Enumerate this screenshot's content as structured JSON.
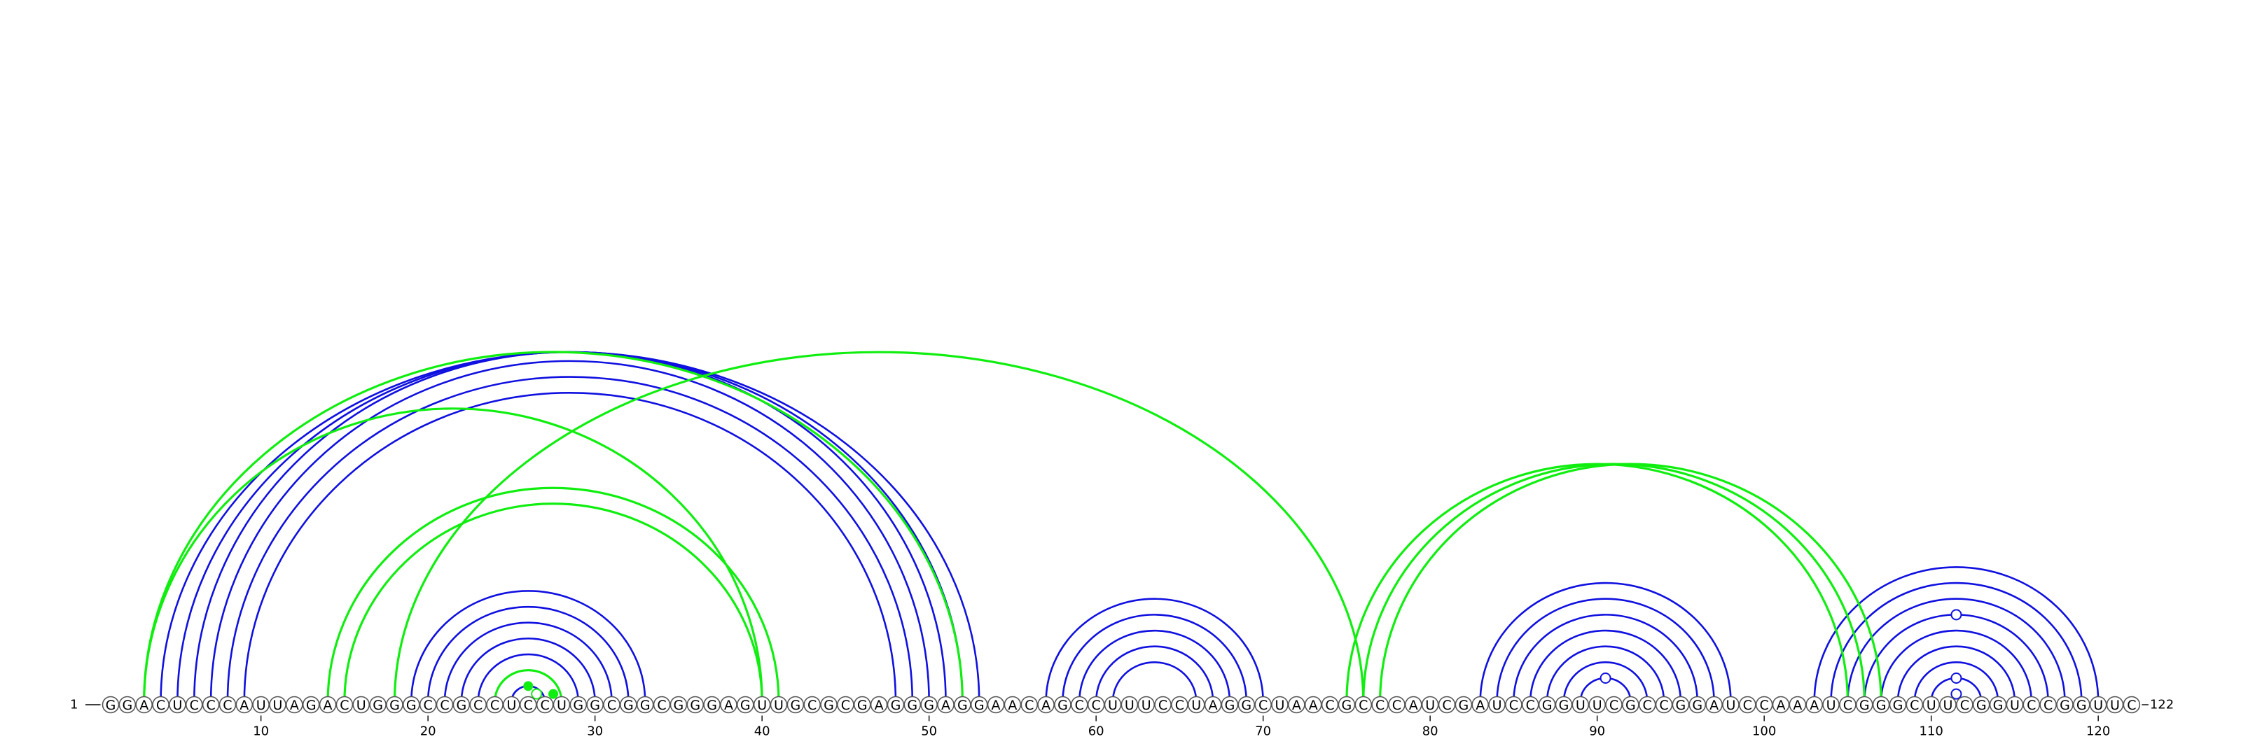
{
  "sequence": "GGACUCCCAUUAGACUGGGCCGCCUCCUGGCGGCGGGAGUUGCGCGAGGGAGGAACAGCCUUUCCUAGGCUAACGCCCAUCGAUCCGGUUCGCCGGAUCCAAAUCGGGCUUCGGUCCGGUUC",
  "start_label": "1",
  "end_label": "122",
  "ticks": [
    10,
    20,
    30,
    40,
    50,
    60,
    70,
    80,
    90,
    100,
    110,
    120
  ],
  "colors": {
    "blue_arc": "#1010e0",
    "green_arc": "#10ee10",
    "circle_stroke": "#555555"
  },
  "arcs": {
    "blue": [
      [
        4,
        53
      ],
      [
        5,
        52
      ],
      [
        6,
        51
      ],
      [
        7,
        50
      ],
      [
        8,
        49
      ],
      [
        9,
        48
      ],
      [
        19,
        33
      ],
      [
        20,
        32
      ],
      [
        21,
        31
      ],
      [
        22,
        30
      ],
      [
        23,
        29
      ],
      [
        24,
        28
      ],
      [
        25,
        27
      ],
      [
        57,
        70
      ],
      [
        58,
        69
      ],
      [
        59,
        68
      ],
      [
        60,
        67
      ],
      [
        61,
        66
      ],
      [
        83,
        98
      ],
      [
        84,
        97
      ],
      [
        85,
        96
      ],
      [
        86,
        95
      ],
      [
        87,
        94
      ],
      [
        88,
        93
      ],
      [
        89,
        92
      ],
      [
        103,
        120
      ],
      [
        104,
        119
      ],
      [
        105,
        118
      ],
      [
        106,
        117
      ],
      [
        107,
        116
      ],
      [
        108,
        115
      ],
      [
        109,
        114
      ],
      [
        110,
        113
      ]
    ],
    "green": [
      [
        3,
        52
      ],
      [
        3,
        40
      ],
      [
        14,
        41
      ],
      [
        15,
        40
      ],
      [
        18,
        76
      ],
      [
        75,
        105
      ],
      [
        76,
        106
      ],
      [
        77,
        107
      ],
      [
        24,
        28
      ]
    ]
  },
  "markers": [
    {
      "i": 27,
      "j": 28,
      "type": "filled",
      "color": "green"
    },
    {
      "i": 26,
      "j": 27,
      "type": "open",
      "color": "green"
    },
    {
      "i": 25,
      "j": 27,
      "type": "filled",
      "color": "green"
    },
    {
      "i": 89,
      "j": 92,
      "type": "open",
      "color": "blue"
    },
    {
      "i": 111,
      "j": 112,
      "type": "open",
      "color": "blue"
    },
    {
      "i": 110,
      "j": 113,
      "type": "open",
      "color": "blue"
    },
    {
      "i": 106,
      "j": 117,
      "type": "open",
      "color": "blue"
    }
  ]
}
